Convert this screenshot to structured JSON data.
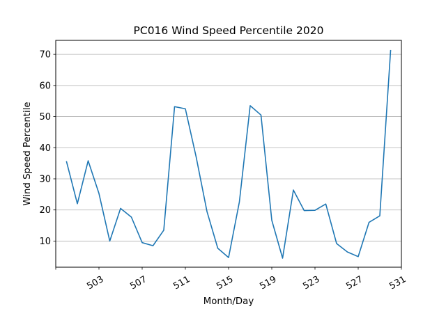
{
  "chart_data": {
    "type": "line",
    "title": "PC016 Wind Speed Percentile 2020",
    "xlabel": "Month/Day",
    "ylabel": "Wind Speed Percentile",
    "xlim": [
      0,
      32
    ],
    "ylim": [
      1.6,
      74.5
    ],
    "xticks": [
      0,
      4,
      8,
      12,
      16,
      20,
      24,
      28,
      32
    ],
    "xtick_labels": [
      "",
      "503",
      "507",
      "511",
      "515",
      "519",
      "523",
      "527",
      "531"
    ],
    "yticks": [
      10,
      20,
      30,
      40,
      50,
      60,
      70
    ],
    "ytick_labels": [
      "10",
      "20",
      "30",
      "40",
      "50",
      "60",
      "70"
    ],
    "grid": "horizontal",
    "color": "#1f77b4",
    "x": [
      1,
      2,
      3,
      4,
      5,
      6,
      7,
      8,
      9,
      10,
      11,
      12,
      13,
      14,
      15,
      16,
      17,
      18,
      19,
      20,
      21,
      22,
      23,
      24,
      25,
      26,
      27,
      28,
      29,
      30,
      31
    ],
    "values": [
      35.5,
      22.0,
      35.8,
      25.3,
      10.0,
      20.5,
      17.7,
      9.5,
      8.5,
      13.5,
      53.2,
      52.5,
      37.0,
      19.5,
      7.7,
      4.7,
      22.6,
      53.5,
      50.5,
      16.7,
      4.5,
      26.4,
      19.8,
      19.9,
      21.9,
      9.2,
      6.5,
      5.0,
      16.0,
      18.1,
      71.2
    ]
  }
}
